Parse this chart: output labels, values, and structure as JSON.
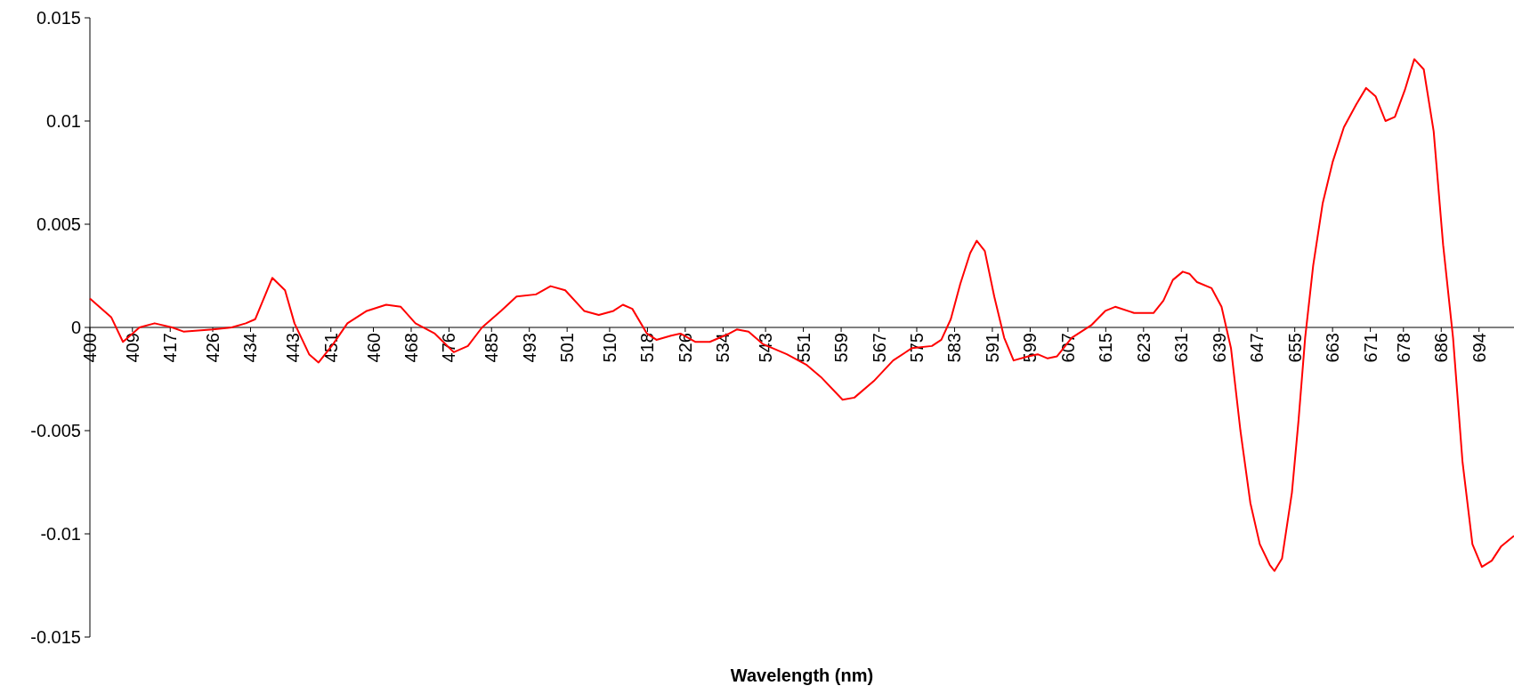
{
  "chart_data": {
    "type": "line",
    "xlabel": "Wavelength (nm)",
    "xlim": [
      400,
      701.4
    ],
    "xticks": [
      400,
      409,
      417,
      426,
      434,
      443,
      451,
      460,
      468,
      476,
      485,
      493,
      501,
      510,
      518,
      526,
      534,
      543,
      551,
      559,
      567,
      575,
      583,
      591,
      599,
      607,
      615,
      623,
      631,
      639,
      647,
      655,
      663,
      671,
      678,
      686,
      694
    ],
    "ylim": [
      -0.015,
      0.015
    ],
    "yticks": [
      -0.015,
      -0.01,
      -0.005,
      0,
      0.005,
      0.01,
      0.015
    ],
    "grid": false,
    "marker": "none",
    "line_style": "solid",
    "series": [
      {
        "color": "#ff0000",
        "x": [
          400,
          404.5,
          407,
          410.5,
          413.7,
          417.4,
          419.8,
          426,
          430,
          433,
          435,
          438.6,
          441.3,
          443.3,
          446.4,
          448.4,
          451.5,
          454.5,
          458.6,
          462.7,
          465.8,
          468.9,
          473,
          477,
          480,
          483,
          487,
          490.3,
          494.4,
          497.5,
          500.6,
          504.6,
          507.7,
          510.8,
          512.8,
          514.8,
          517.9,
          519.9,
          523,
          525,
          528.1,
          531.2,
          535.3,
          536.9,
          539.4,
          542.4,
          547.5,
          551.6,
          554.7,
          559.3,
          561.8,
          565.9,
          570,
          574,
          578.2,
          580.2,
          582.2,
          584.2,
          586.3,
          587.7,
          589.4,
          591.4,
          593.5,
          595.5,
          598.6,
          600.6,
          602.7,
          604.7,
          607.8,
          611.9,
          614.9,
          617,
          621,
          625.1,
          627.2,
          629.2,
          631.3,
          632.7,
          634.3,
          637.4,
          639.5,
          641.5,
          643.5,
          645.6,
          647.6,
          649.7,
          650.7,
          652.3,
          654.4,
          655.8,
          657.2,
          658.9,
          660.9,
          663,
          665.4,
          668,
          670.1,
          672.1,
          674.2,
          676.2,
          678.3,
          680.3,
          682.3,
          684.4,
          686.4,
          688.5,
          690.5,
          692.6,
          694.6,
          696.7,
          698.7,
          701.4
        ],
        "values": [
          0.0014,
          0.0005,
          -0.0007,
          0,
          0.0002,
          0,
          -0.0002,
          -0.0001,
          0,
          0.0002,
          0.0004,
          0.0024,
          0.0018,
          0.0002,
          -0.0013,
          -0.0017,
          -0.0008,
          0.0002,
          0.0008,
          0.0011,
          0.001,
          0.0002,
          -0.0003,
          -0.0012,
          -0.0009,
          0,
          0.0008,
          0.0015,
          0.0016,
          0.002,
          0.0018,
          0.0008,
          0.0006,
          0.0008,
          0.0011,
          0.0009,
          -0.0003,
          -0.0006,
          -0.0004,
          -0.0003,
          -0.0007,
          -0.0007,
          -0.0003,
          -0.0001,
          -0.0002,
          -0.0008,
          -0.0013,
          -0.0018,
          -0.0024,
          -0.0035,
          -0.0034,
          -0.0026,
          -0.0016,
          -0.001,
          -0.0009,
          -0.0006,
          0.0004,
          0.0021,
          0.0036,
          0.0042,
          0.0037,
          0.0015,
          -0.0005,
          -0.0016,
          -0.0014,
          -0.0013,
          -0.0015,
          -0.0014,
          -0.0005,
          0.0001,
          0.0008,
          0.001,
          0.0007,
          0.0007,
          0.0013,
          0.0023,
          0.0027,
          0.0026,
          0.0022,
          0.0019,
          0.001,
          -0.001,
          -0.005,
          -0.0085,
          -0.0105,
          -0.0115,
          -0.0118,
          -0.0112,
          -0.008,
          -0.0045,
          -0.0005,
          0.003,
          0.006,
          0.008,
          0.0097,
          0.0108,
          0.0116,
          0.0112,
          0.01,
          0.0102,
          0.0115,
          0.013,
          0.0125,
          0.0095,
          0.004,
          -0.0005,
          -0.0065,
          -0.0105,
          -0.0116,
          -0.0113,
          -0.0106,
          -0.0101
        ]
      }
    ]
  }
}
